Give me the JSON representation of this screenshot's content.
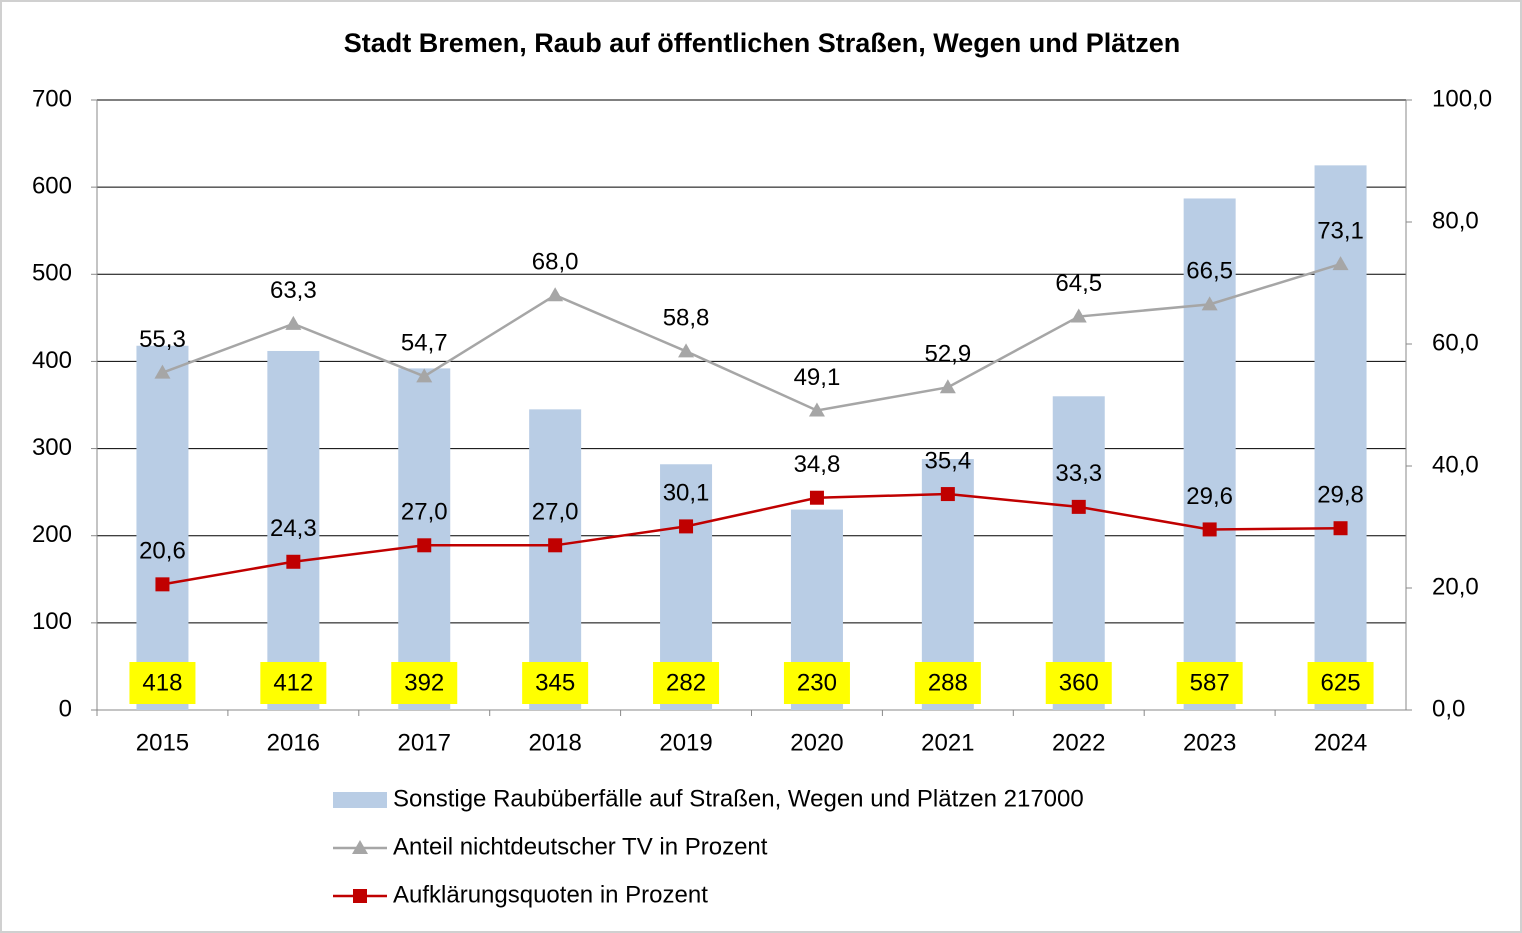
{
  "chart_data": {
    "type": "bar_line",
    "title": "Stadt Bremen, Raub auf öffentlichen Straßen, Wegen und Plätzen",
    "categories": [
      "2015",
      "2016",
      "2017",
      "2018",
      "2019",
      "2020",
      "2021",
      "2022",
      "2023",
      "2024"
    ],
    "series": [
      {
        "name": "Sonstige Raubüberfälle auf Straßen, Wegen und Plätzen 217000",
        "type": "bar",
        "color": "#b9cde5",
        "label_background": "#ffff00",
        "values": [
          418,
          412,
          392,
          345,
          282,
          230,
          288,
          360,
          587,
          625
        ]
      },
      {
        "name": "Anteil nichtdeutscher TV in Prozent",
        "type": "line",
        "marker": "triangle",
        "axis": "y2",
        "color": "#a6a6a6",
        "values": [
          55.3,
          63.3,
          54.7,
          68.0,
          58.8,
          49.1,
          52.9,
          64.5,
          66.5,
          73.1
        ],
        "value_labels": [
          "55,3",
          "63,3",
          "54,7",
          "68,0",
          "58,8",
          "49,1",
          "52,9",
          "64,5",
          "66,5",
          "73,1"
        ]
      },
      {
        "name": "Aufklärungsquoten in Prozent",
        "type": "line",
        "marker": "square",
        "axis": "y2",
        "color": "#c00000",
        "values": [
          20.6,
          24.3,
          27.0,
          27.0,
          30.1,
          34.8,
          35.4,
          33.3,
          29.6,
          29.8
        ],
        "value_labels": [
          "20,6",
          "24,3",
          "27,0",
          "27,0",
          "30,1",
          "34,8",
          "35,4",
          "33,3",
          "29,6",
          "29,8"
        ]
      }
    ],
    "ylim": [
      0,
      700
    ],
    "yticks": [
      0,
      100,
      200,
      300,
      400,
      500,
      600,
      700
    ],
    "y2lim": [
      0,
      100
    ],
    "y2ticks": [
      {
        "value": 0,
        "label": "0,0"
      },
      {
        "value": 20,
        "label": "20,0"
      },
      {
        "value": 40,
        "label": "40,0"
      },
      {
        "value": 60,
        "label": "60,0"
      },
      {
        "value": 80,
        "label": "80,0"
      },
      {
        "value": 100,
        "label": "100,0"
      }
    ],
    "grid": true,
    "legend": "bottom"
  }
}
